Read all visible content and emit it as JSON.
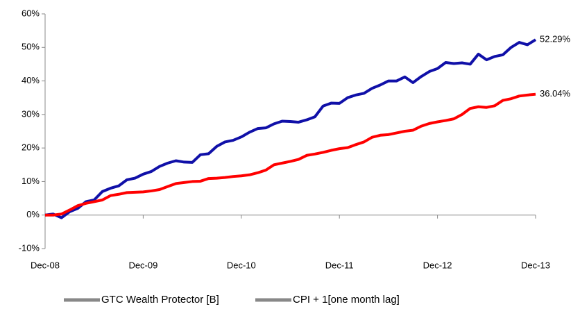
{
  "chart_data": {
    "type": "line",
    "categories": [
      "Dec-08",
      null,
      null,
      null,
      null,
      null,
      null,
      null,
      null,
      null,
      null,
      null,
      "Dec-09",
      null,
      null,
      null,
      null,
      null,
      null,
      null,
      null,
      null,
      null,
      null,
      "Dec-10",
      null,
      null,
      null,
      null,
      null,
      null,
      null,
      null,
      null,
      null,
      null,
      "Dec-11",
      null,
      null,
      null,
      null,
      null,
      null,
      null,
      null,
      null,
      null,
      null,
      "Dec-12",
      null,
      null,
      null,
      null,
      null,
      null,
      null,
      null,
      null,
      null,
      null,
      "Dec-13"
    ],
    "series": [
      {
        "name": "GTC Wealth Protector [B]",
        "color": "#1010a8",
        "values": [
          0,
          0.3,
          -0.8,
          1,
          2,
          4,
          4.5,
          7,
          8,
          8.7,
          10.5,
          11,
          12.2,
          13,
          14.5,
          15.5,
          16.2,
          15.8,
          15.7,
          18,
          18.3,
          20.5,
          21.8,
          22.3,
          23.3,
          24.7,
          25.8,
          26,
          27.2,
          28,
          27.9,
          27.7,
          28.4,
          29.3,
          32.5,
          33.4,
          33.3,
          35,
          35.8,
          36.3,
          37.8,
          38.8,
          40,
          40,
          41.2,
          39.5,
          41.3,
          42.8,
          43.7,
          45.5,
          45.2,
          45.4,
          45,
          48,
          46.3,
          47.3,
          47.8,
          50,
          51.5,
          50.8,
          52.29
        ],
        "value_labels": [
          null,
          null,
          null,
          null,
          null,
          null,
          null,
          null,
          null,
          null,
          null,
          null,
          null,
          null,
          null,
          null,
          null,
          null,
          null,
          null,
          null,
          null,
          null,
          null,
          null,
          null,
          null,
          null,
          null,
          null,
          null,
          null,
          null,
          null,
          null,
          null,
          null,
          null,
          null,
          null,
          null,
          null,
          null,
          null,
          null,
          null,
          null,
          null,
          null,
          null,
          null,
          null,
          null,
          null,
          null,
          null,
          null,
          null,
          null,
          null,
          "52.29%"
        ]
      },
      {
        "name": "CPI + 1[one month lag]",
        "color": "#ff0000",
        "values": [
          0,
          0,
          0.3,
          1.5,
          2.8,
          3.5,
          4,
          4.5,
          5.8,
          6.2,
          6.7,
          6.8,
          6.9,
          7.2,
          7.6,
          8.5,
          9.4,
          9.7,
          10,
          10.1,
          10.9,
          11,
          11.2,
          11.5,
          11.7,
          12,
          12.6,
          13.4,
          15,
          15.5,
          16,
          16.6,
          17.8,
          18.2,
          18.7,
          19.3,
          19.8,
          20.1,
          21,
          21.8,
          23.2,
          23.8,
          24,
          24.5,
          25,
          25.3,
          26.5,
          27.3,
          27.8,
          28.2,
          28.7,
          30,
          31.8,
          32.3,
          32.1,
          32.6,
          34.2,
          34.7,
          35.5,
          35.8,
          36.04
        ],
        "value_labels": [
          null,
          null,
          null,
          null,
          null,
          null,
          null,
          null,
          null,
          null,
          null,
          null,
          null,
          null,
          null,
          null,
          null,
          null,
          null,
          null,
          null,
          null,
          null,
          null,
          null,
          null,
          null,
          null,
          null,
          null,
          null,
          null,
          null,
          null,
          null,
          null,
          null,
          null,
          null,
          null,
          null,
          null,
          null,
          null,
          null,
          null,
          null,
          null,
          null,
          null,
          null,
          null,
          null,
          null,
          null,
          null,
          null,
          null,
          null,
          null,
          "36.04%"
        ]
      }
    ],
    "ylim": [
      -10,
      60
    ],
    "yticks": [
      {
        "value": -10,
        "label": "-10%"
      },
      {
        "value": 0,
        "label": "0%"
      },
      {
        "value": 10,
        "label": "10%"
      },
      {
        "value": 20,
        "label": "20%"
      },
      {
        "value": 30,
        "label": "30%"
      },
      {
        "value": 40,
        "label": "40%"
      },
      {
        "value": 50,
        "label": "50%"
      },
      {
        "value": 60,
        "label": "60%"
      }
    ],
    "grid": false,
    "legend": "bottom"
  }
}
